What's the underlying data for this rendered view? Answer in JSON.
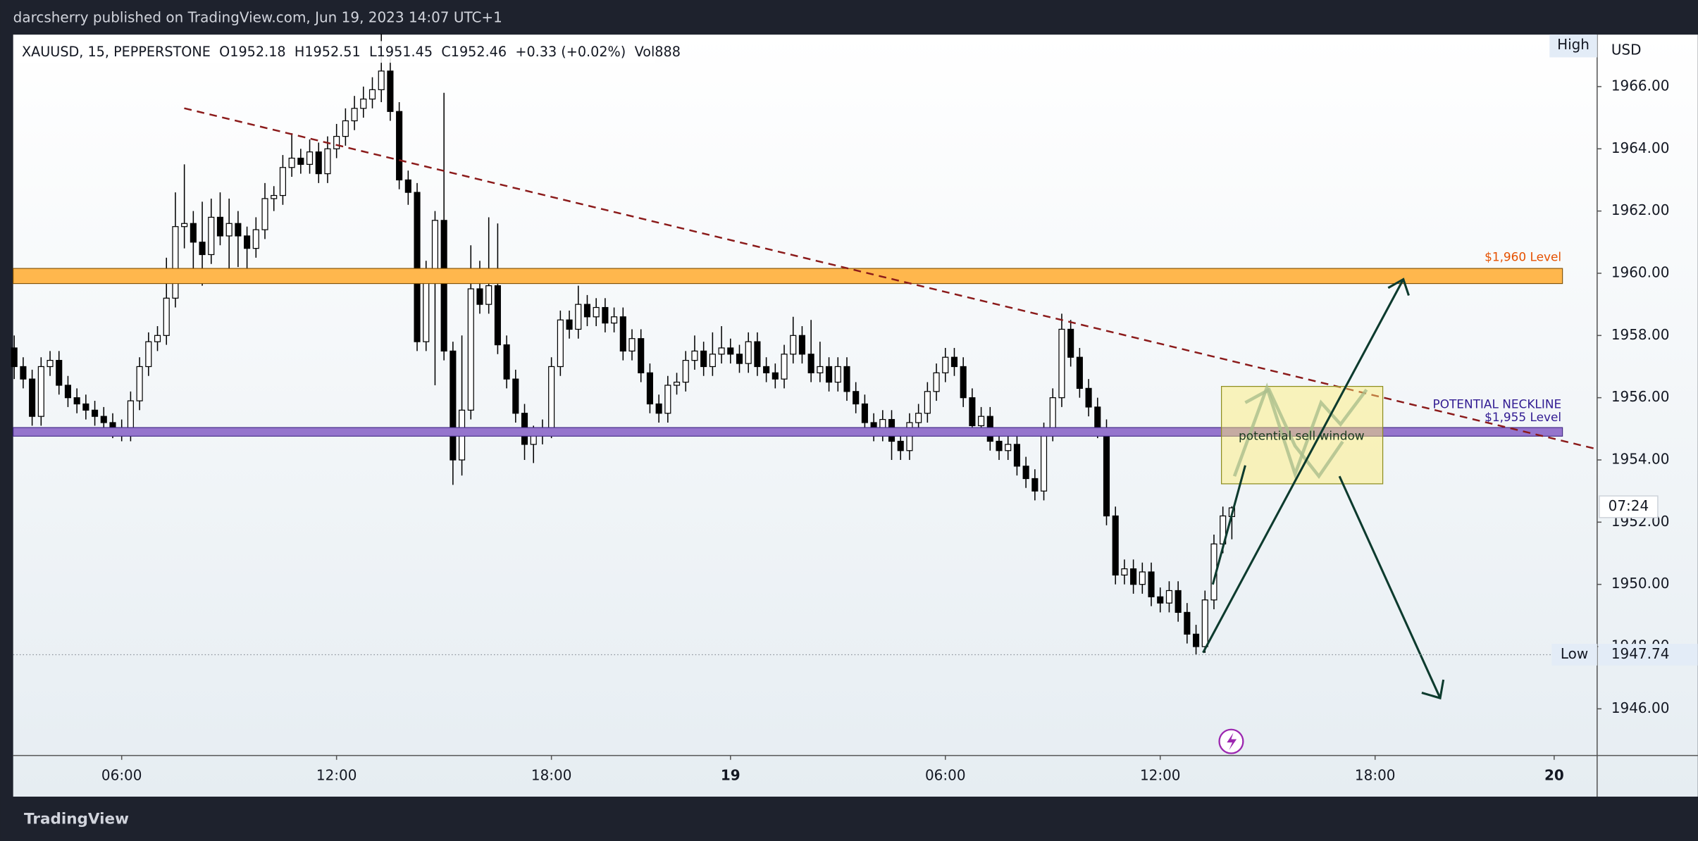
{
  "header": {
    "publisher": "darcsherry published on TradingView.com, Jun 19, 2023 14:07 UTC+1",
    "brand": "TradingView"
  },
  "chart_data": {
    "type": "candlestick",
    "symbol": "XAUUSD, 15, PEPPERSTONE",
    "legend_values": [
      "O1952.18",
      "H1952.51",
      "L1951.45",
      "C1952.46",
      "+0.33 (+0.02%)",
      "Vol888"
    ],
    "currency": "USD",
    "bull_color": "#ffffff",
    "bear_color": "#000000",
    "candles": [
      [
        1957.6,
        1958.0,
        1956.6,
        1957.0
      ],
      [
        1957.0,
        1957.3,
        1956.3,
        1956.6
      ],
      [
        1956.6,
        1956.9,
        1955.1,
        1955.4
      ],
      [
        1955.4,
        1957.3,
        1955.1,
        1957.0
      ],
      [
        1957.0,
        1957.5,
        1956.7,
        1957.2
      ],
      [
        1957.2,
        1957.5,
        1956.1,
        1956.4
      ],
      [
        1956.4,
        1956.7,
        1955.7,
        1956.0
      ],
      [
        1956.0,
        1956.3,
        1955.5,
        1955.8
      ],
      [
        1955.8,
        1956.1,
        1955.3,
        1955.6
      ],
      [
        1955.6,
        1955.9,
        1955.1,
        1955.4
      ],
      [
        1955.4,
        1955.7,
        1954.9,
        1955.2
      ],
      [
        1955.2,
        1955.5,
        1954.7,
        1955.0
      ],
      [
        1955.0,
        1955.3,
        1954.6,
        1954.9
      ],
      [
        1954.9,
        1956.2,
        1954.6,
        1955.9
      ],
      [
        1955.9,
        1957.3,
        1955.6,
        1957.0
      ],
      [
        1957.0,
        1958.1,
        1956.7,
        1957.8
      ],
      [
        1957.8,
        1958.3,
        1957.5,
        1958.0
      ],
      [
        1958.0,
        1960.5,
        1957.7,
        1959.2
      ],
      [
        1959.2,
        1962.6,
        1958.9,
        1961.5
      ],
      [
        1961.5,
        1963.5,
        1960.8,
        1961.6
      ],
      [
        1961.6,
        1962.0,
        1959.8,
        1961.0
      ],
      [
        1961.0,
        1962.3,
        1959.6,
        1960.6
      ],
      [
        1960.6,
        1962.4,
        1960.3,
        1961.8
      ],
      [
        1961.8,
        1962.6,
        1960.9,
        1961.2
      ],
      [
        1961.2,
        1962.4,
        1960.0,
        1961.6
      ],
      [
        1961.6,
        1962.0,
        1960.2,
        1961.2
      ],
      [
        1961.2,
        1961.5,
        1960.1,
        1960.8
      ],
      [
        1960.8,
        1961.8,
        1960.5,
        1961.4
      ],
      [
        1961.4,
        1962.9,
        1961.1,
        1962.4
      ],
      [
        1962.4,
        1962.8,
        1962.0,
        1962.5
      ],
      [
        1962.5,
        1963.8,
        1962.2,
        1963.4
      ],
      [
        1963.4,
        1964.5,
        1963.1,
        1963.7
      ],
      [
        1963.7,
        1964.0,
        1963.2,
        1963.5
      ],
      [
        1963.5,
        1964.3,
        1963.2,
        1963.9
      ],
      [
        1963.9,
        1964.2,
        1962.9,
        1963.2
      ],
      [
        1963.2,
        1964.4,
        1962.9,
        1964.0
      ],
      [
        1964.0,
        1964.8,
        1963.7,
        1964.4
      ],
      [
        1964.4,
        1965.3,
        1964.1,
        1964.9
      ],
      [
        1964.9,
        1965.7,
        1964.6,
        1965.3
      ],
      [
        1965.3,
        1966.0,
        1965.0,
        1965.6
      ],
      [
        1965.6,
        1966.3,
        1965.3,
        1965.9
      ],
      [
        1965.9,
        1967.7,
        1965.5,
        1966.5
      ],
      [
        1966.5,
        1966.9,
        1964.9,
        1965.2
      ],
      [
        1965.2,
        1965.5,
        1962.7,
        1963.0
      ],
      [
        1963.0,
        1963.3,
        1962.2,
        1962.6
      ],
      [
        1962.6,
        1962.9,
        1957.5,
        1957.8
      ],
      [
        1957.8,
        1960.4,
        1957.5,
        1960.0
      ],
      [
        1960.0,
        1962.0,
        1956.4,
        1961.7
      ],
      [
        1961.7,
        1965.8,
        1957.2,
        1957.5
      ],
      [
        1957.5,
        1957.8,
        1953.2,
        1954.0
      ],
      [
        1954.0,
        1958.0,
        1953.5,
        1955.6
      ],
      [
        1955.6,
        1960.9,
        1955.3,
        1959.5
      ],
      [
        1959.5,
        1960.4,
        1958.7,
        1959.0
      ],
      [
        1959.0,
        1961.8,
        1958.7,
        1959.6
      ],
      [
        1959.6,
        1961.6,
        1957.4,
        1957.7
      ],
      [
        1957.7,
        1958.0,
        1956.3,
        1956.6
      ],
      [
        1956.6,
        1956.9,
        1955.2,
        1955.5
      ],
      [
        1955.5,
        1955.8,
        1954.0,
        1954.5
      ],
      [
        1954.5,
        1955.1,
        1953.9,
        1954.8
      ],
      [
        1954.8,
        1955.3,
        1954.5,
        1955.0
      ],
      [
        1955.0,
        1957.3,
        1954.7,
        1957.0
      ],
      [
        1957.0,
        1958.8,
        1956.7,
        1958.5
      ],
      [
        1958.5,
        1958.8,
        1957.9,
        1958.2
      ],
      [
        1958.2,
        1959.6,
        1957.9,
        1959.0
      ],
      [
        1959.0,
        1959.3,
        1958.3,
        1958.6
      ],
      [
        1958.6,
        1959.2,
        1958.3,
        1958.9
      ],
      [
        1958.9,
        1959.2,
        1958.1,
        1958.4
      ],
      [
        1958.4,
        1958.9,
        1958.1,
        1958.6
      ],
      [
        1958.6,
        1958.9,
        1957.2,
        1957.5
      ],
      [
        1957.5,
        1958.2,
        1957.2,
        1957.9
      ],
      [
        1957.9,
        1958.2,
        1956.5,
        1956.8
      ],
      [
        1956.8,
        1957.1,
        1955.5,
        1955.8
      ],
      [
        1955.8,
        1956.1,
        1955.2,
        1955.5
      ],
      [
        1955.5,
        1956.7,
        1955.2,
        1956.4
      ],
      [
        1956.4,
        1956.8,
        1956.1,
        1956.5
      ],
      [
        1956.5,
        1957.5,
        1956.2,
        1957.2
      ],
      [
        1957.2,
        1958.0,
        1956.9,
        1957.5
      ],
      [
        1957.5,
        1957.8,
        1956.7,
        1957.0
      ],
      [
        1957.0,
        1958.1,
        1956.7,
        1957.4
      ],
      [
        1957.4,
        1958.3,
        1957.1,
        1957.6
      ],
      [
        1957.6,
        1957.9,
        1957.1,
        1957.4
      ],
      [
        1957.4,
        1957.7,
        1956.8,
        1957.1
      ],
      [
        1957.1,
        1958.1,
        1956.8,
        1957.8
      ],
      [
        1957.8,
        1958.1,
        1956.7,
        1957.0
      ],
      [
        1957.0,
        1957.3,
        1956.5,
        1956.8
      ],
      [
        1956.8,
        1957.1,
        1956.3,
        1956.6
      ],
      [
        1956.6,
        1957.7,
        1956.3,
        1957.4
      ],
      [
        1957.4,
        1958.6,
        1957.1,
        1958.0
      ],
      [
        1958.0,
        1958.3,
        1957.1,
        1957.4
      ],
      [
        1957.4,
        1958.5,
        1956.5,
        1956.8
      ],
      [
        1956.8,
        1957.8,
        1956.5,
        1957.0
      ],
      [
        1957.0,
        1957.3,
        1956.2,
        1956.5
      ],
      [
        1956.5,
        1957.3,
        1956.2,
        1957.0
      ],
      [
        1957.0,
        1957.3,
        1955.9,
        1956.2
      ],
      [
        1956.2,
        1956.5,
        1955.5,
        1955.8
      ],
      [
        1955.8,
        1956.1,
        1954.9,
        1955.2
      ],
      [
        1955.2,
        1955.5,
        1954.6,
        1954.9
      ],
      [
        1954.9,
        1955.6,
        1954.6,
        1955.3
      ],
      [
        1955.3,
        1955.6,
        1954.0,
        1954.6
      ],
      [
        1954.6,
        1954.9,
        1954.0,
        1954.3
      ],
      [
        1954.3,
        1955.5,
        1954.0,
        1955.2
      ],
      [
        1955.2,
        1955.8,
        1954.9,
        1955.5
      ],
      [
        1955.5,
        1956.5,
        1955.2,
        1956.2
      ],
      [
        1956.2,
        1957.1,
        1955.9,
        1956.8
      ],
      [
        1956.8,
        1957.6,
        1956.5,
        1957.3
      ],
      [
        1957.3,
        1957.6,
        1956.7,
        1957.0
      ],
      [
        1957.0,
        1957.3,
        1955.7,
        1956.0
      ],
      [
        1956.0,
        1956.3,
        1954.8,
        1955.1
      ],
      [
        1955.1,
        1955.7,
        1954.8,
        1955.4
      ],
      [
        1955.4,
        1955.7,
        1954.3,
        1954.6
      ],
      [
        1954.6,
        1954.9,
        1954.0,
        1954.3
      ],
      [
        1954.3,
        1954.8,
        1954.0,
        1954.5
      ],
      [
        1954.5,
        1954.8,
        1953.5,
        1953.8
      ],
      [
        1953.8,
        1954.1,
        1953.1,
        1953.4
      ],
      [
        1953.4,
        1953.7,
        1952.7,
        1953.0
      ],
      [
        1953.0,
        1955.2,
        1952.7,
        1954.9
      ],
      [
        1954.9,
        1956.3,
        1954.6,
        1956.0
      ],
      [
        1956.0,
        1958.7,
        1955.7,
        1958.2
      ],
      [
        1958.2,
        1958.5,
        1957.0,
        1957.3
      ],
      [
        1957.3,
        1957.6,
        1956.0,
        1956.3
      ],
      [
        1956.3,
        1956.6,
        1955.4,
        1955.7
      ],
      [
        1955.7,
        1956.0,
        1954.7,
        1955.0
      ],
      [
        1955.0,
        1955.3,
        1951.9,
        1952.2
      ],
      [
        1952.2,
        1952.5,
        1950.0,
        1950.3
      ],
      [
        1950.3,
        1950.8,
        1950.0,
        1950.5
      ],
      [
        1950.5,
        1950.8,
        1949.7,
        1950.0
      ],
      [
        1950.0,
        1950.7,
        1949.7,
        1950.4
      ],
      [
        1950.4,
        1950.7,
        1949.3,
        1949.6
      ],
      [
        1949.6,
        1949.9,
        1949.1,
        1949.4
      ],
      [
        1949.4,
        1950.1,
        1949.1,
        1949.8
      ],
      [
        1949.8,
        1950.1,
        1948.8,
        1949.1
      ],
      [
        1949.1,
        1949.4,
        1948.1,
        1948.4
      ],
      [
        1948.4,
        1948.7,
        1947.74,
        1948.0
      ],
      [
        1948.0,
        1949.8,
        1947.8,
        1949.5
      ],
      [
        1949.5,
        1951.6,
        1949.2,
        1951.3
      ],
      [
        1951.3,
        1952.5,
        1951.0,
        1952.2
      ],
      [
        1952.18,
        1952.51,
        1951.45,
        1952.46
      ]
    ],
    "xlim": [
      -0.12,
      176.8
    ],
    "xticks": [
      {
        "value": 12,
        "label": "06:00"
      },
      {
        "value": 36,
        "label": "12:00"
      },
      {
        "value": 60,
        "label": "18:00"
      },
      {
        "value": 80,
        "label": "19"
      },
      {
        "value": 104,
        "label": "06:00"
      },
      {
        "value": 128,
        "label": "12:00"
      },
      {
        "value": 152,
        "label": "18:00"
      },
      {
        "value": 172,
        "label": "20"
      }
    ],
    "ylim": [
      1944.5,
      1967.67
    ],
    "yticks": [
      {
        "value": 1946,
        "label": "1946.00"
      },
      {
        "value": 1948,
        "label": "1948.00"
      },
      {
        "value": 1950,
        "label": "1950.00"
      },
      {
        "value": 1952,
        "label": "1952.00"
      },
      {
        "value": 1954,
        "label": "1954.00"
      },
      {
        "value": 1956,
        "label": "1956.00"
      },
      {
        "value": 1958,
        "label": "1958.00"
      },
      {
        "value": 1960,
        "label": "1960.00"
      },
      {
        "value": 1962,
        "label": "1962.00"
      },
      {
        "value": 1964,
        "label": "1964.00"
      },
      {
        "value": 1966,
        "label": "1966.00"
      }
    ],
    "high_label": "High",
    "low_label": "Low",
    "low": 1947.74,
    "countdown": "07:24",
    "annotations": {
      "level_1960": "$1,960 Level",
      "neckline": "POTENTIAL NECKLINE",
      "level_1955": "$1,955 Level",
      "sell_window": "potential sell window"
    }
  }
}
